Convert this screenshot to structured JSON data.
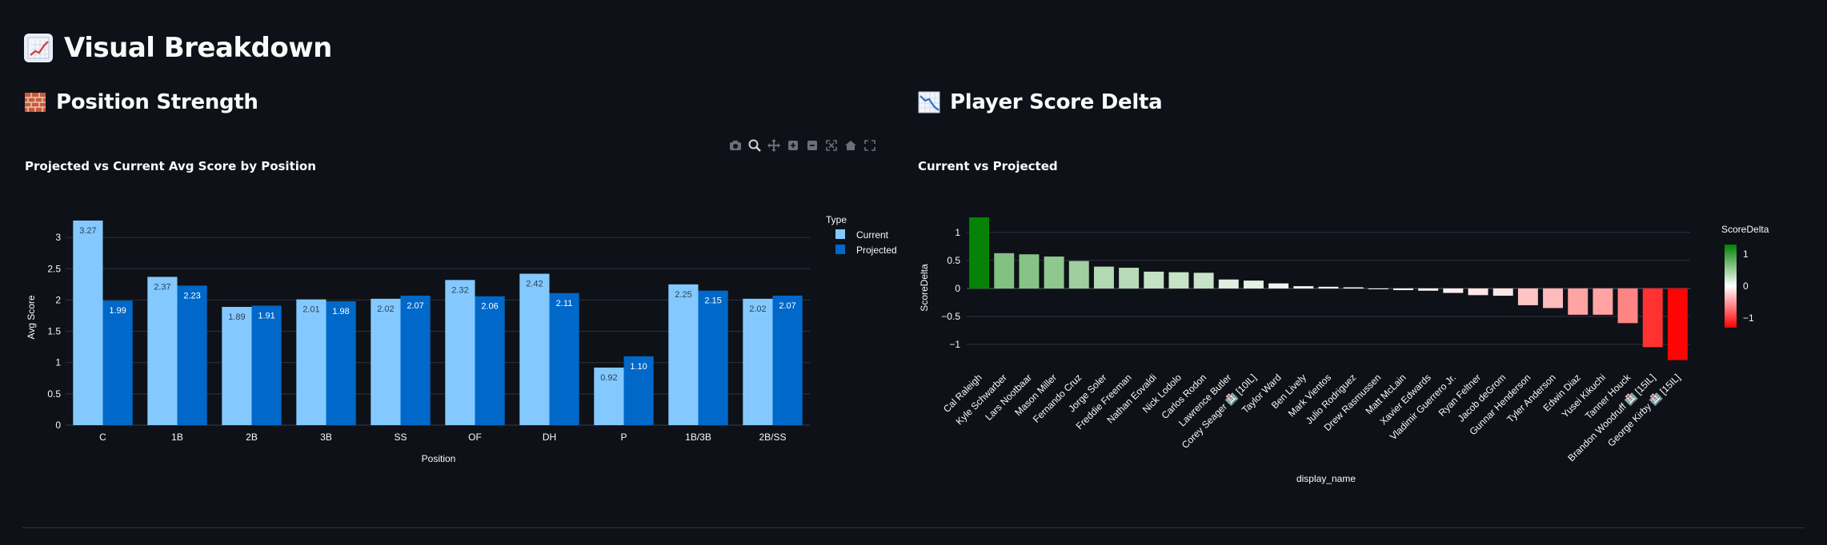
{
  "header": {
    "title": "Visual Breakdown",
    "icon": "chart-increasing-icon"
  },
  "sections": {
    "left": {
      "title": "Position Strength",
      "icon": "brick-icon"
    },
    "right": {
      "title": "Player Score Delta",
      "icon": "chart-decreasing-icon"
    }
  },
  "modebar": [
    "camera-icon",
    "zoom-icon",
    "pan-icon",
    "zoom-in-icon",
    "zoom-out-icon",
    "autoscale-icon",
    "home-icon",
    "fullscreen-icon"
  ],
  "chart_data": [
    {
      "type": "bar",
      "title": "Projected vs Current Avg Score by Position",
      "xlabel": "Position",
      "ylabel": "Avg Score",
      "categories": [
        "C",
        "1B",
        "2B",
        "3B",
        "SS",
        "OF",
        "DH",
        "P",
        "1B/3B",
        "2B/SS"
      ],
      "series": [
        {
          "name": "Current",
          "color": "#83c9ff",
          "values": [
            3.27,
            2.37,
            1.89,
            2.01,
            2.02,
            2.32,
            2.42,
            0.92,
            2.25,
            2.02
          ],
          "labels": [
            "3.27",
            "2.37",
            "1.89",
            "2.01",
            "2.02",
            "2.32",
            "2.42",
            "0.92",
            "2.25",
            "2.02"
          ]
        },
        {
          "name": "Projected",
          "color": "#0068c9",
          "values": [
            1.99,
            2.23,
            1.91,
            1.98,
            2.07,
            2.06,
            2.11,
            1.1,
            2.15,
            2.07
          ],
          "labels": [
            "1.99",
            "2.23",
            "1.91",
            "1.98",
            "2.07",
            "2.06",
            "2.11",
            "1.10",
            "2.15",
            "2.07"
          ]
        }
      ],
      "ylim": [
        0,
        3.27
      ],
      "yticks": [
        0,
        0.5,
        1,
        1.5,
        2,
        2.5,
        3
      ],
      "ytick_labels": [
        "0",
        "0.5",
        "1",
        "1.5",
        "2",
        "2.5",
        "3"
      ],
      "legend": {
        "title": "Type",
        "placement": "right-top"
      },
      "grid": true
    },
    {
      "type": "bar",
      "title": "Current vs Projected",
      "xlabel": "display_name",
      "ylabel": "ScoreDelta",
      "categories": [
        "Cal Raleigh",
        "Kyle Schwarber",
        "Lars Nootbaar",
        "Mason Miller",
        "Fernando Cruz",
        "Jorge Soler",
        "Freddie Freeman",
        "Nathan Eovaldi",
        "Nick Lodolo",
        "Carlos Rodon",
        "Lawrence Butler",
        "Corey Seager 🏥 [10IL]",
        "Taylor Ward",
        "Ben Lively",
        "Mark Vientos",
        "Julio Rodriguez",
        "Drew Rasmussen",
        "Matt McLain",
        "Xavier Edwards",
        "Vladimir Guerrero Jr.",
        "Ryan Feltner",
        "Jacob deGrom",
        "Gunnar Henderson",
        "Tyler Anderson",
        "Edwin Diaz",
        "Yusei Kikuchi",
        "Tanner Houck",
        "Brandon Woodruff 🏥 [15IL]",
        "George Kirby 🏥 [15IL]"
      ],
      "values": [
        1.27,
        0.63,
        0.61,
        0.57,
        0.49,
        0.39,
        0.37,
        0.3,
        0.29,
        0.28,
        0.16,
        0.14,
        0.09,
        0.04,
        0.03,
        0.02,
        0.0,
        -0.03,
        -0.04,
        -0.08,
        -0.12,
        -0.13,
        -0.3,
        -0.35,
        -0.47,
        -0.47,
        -0.62,
        -1.05,
        -1.28
      ],
      "ylim": [
        -1.3,
        1.27
      ],
      "yticks": [
        -1,
        -0.5,
        0,
        0.5,
        1
      ],
      "ytick_labels": [
        "−1",
        "−0.5",
        "0",
        "0.5",
        "1"
      ],
      "colorbar": {
        "title": "ScoreDelta",
        "ticks": [
          -1,
          0,
          1
        ],
        "tick_labels": [
          "−1",
          "0",
          "1"
        ],
        "range": [
          -1.3,
          1.3
        ],
        "low_color": "#ff0000",
        "mid_color": "#ffffff",
        "high_color": "#008000"
      },
      "grid": true
    }
  ]
}
